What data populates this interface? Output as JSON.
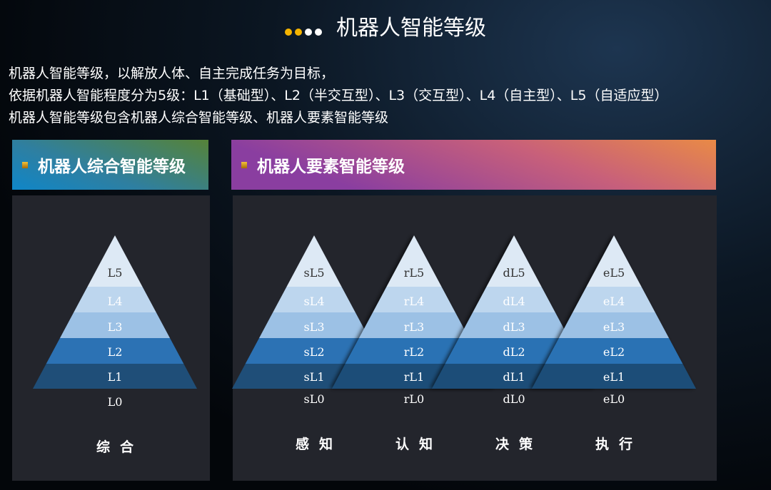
{
  "title": "机器人智能等级",
  "dot_colors": [
    "#f5b400",
    "#f5b400",
    "#ffffff",
    "#ffffff"
  ],
  "intro": [
    "机器人智能等级，以解放人体、自主完成任务为目标，",
    "依据机器人智能程度分为5级：L1（基础型）、L2（半交互型）、L3（交互型）、L4（自主型）、L5（自适应型）",
    "机器人智能等级包含机器人综合智能等级、机器人要素智能等级"
  ],
  "left_header": "机器人综合智能等级",
  "right_header": "机器人要素智能等级",
  "band_colors": [
    "#dde9f5",
    "#bdd6ee",
    "#9cc1e5",
    "#2c72b4",
    "#1f4e78"
  ],
  "pyramids": [
    {
      "levels": [
        "L5",
        "L4",
        "L3",
        "L2",
        "L1"
      ],
      "base": "L0",
      "label": "综合"
    },
    {
      "levels": [
        "sL5",
        "sL4",
        "sL3",
        "sL2",
        "sL1"
      ],
      "base": "sL0",
      "label": "感知"
    },
    {
      "levels": [
        "rL5",
        "rL4",
        "rL3",
        "rL2",
        "rL1"
      ],
      "base": "rL0",
      "label": "认知"
    },
    {
      "levels": [
        "dL5",
        "dL4",
        "dL3",
        "dL2",
        "dL1"
      ],
      "base": "dL0",
      "label": "决策"
    },
    {
      "levels": [
        "eL5",
        "eL4",
        "eL3",
        "eL2",
        "eL1"
      ],
      "base": "eL0",
      "label": "执行"
    }
  ]
}
